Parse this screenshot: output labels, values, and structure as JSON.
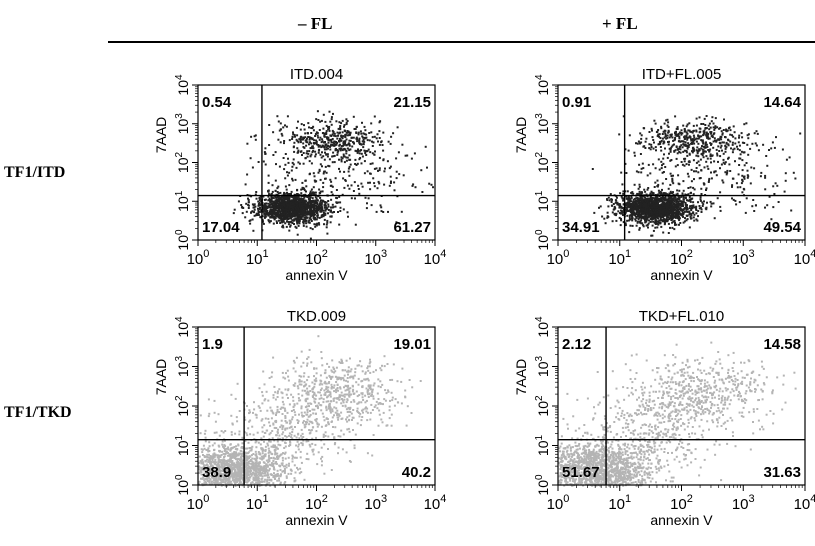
{
  "column_headers": [
    "– FL",
    "+ FL"
  ],
  "row_headers": [
    "TF1/ITD",
    "TF1/TKD"
  ],
  "chart_data": [
    {
      "type": "scatter",
      "title": "ITD.004",
      "xlabel": "annexin V",
      "ylabel": "7AAD",
      "xscale": "log",
      "yscale": "log",
      "xlim": [
        1,
        10000
      ],
      "ylim": [
        1,
        10000
      ],
      "x_ticks": [
        "10^0",
        "10^1",
        "10^2",
        "10^3",
        "10^4"
      ],
      "y_ticks": [
        "10^0",
        "10^1",
        "10^2",
        "10^3",
        "10^4"
      ],
      "gates": {
        "x": 12,
        "y": 14
      },
      "quadrants": {
        "upper_left": "0.54",
        "upper_right": "21.15",
        "lower_left": "17.04",
        "lower_right": "61.27"
      },
      "color": "#222222"
    },
    {
      "type": "scatter",
      "title": "ITD+FL.005",
      "xlabel": "annexin V",
      "ylabel": "7AAD",
      "xscale": "log",
      "yscale": "log",
      "xlim": [
        1,
        10000
      ],
      "ylim": [
        1,
        10000
      ],
      "x_ticks": [
        "10^0",
        "10^1",
        "10^2",
        "10^3",
        "10^4"
      ],
      "y_ticks": [
        "10^0",
        "10^1",
        "10^2",
        "10^3",
        "10^4"
      ],
      "gates": {
        "x": 12,
        "y": 14
      },
      "quadrants": {
        "upper_left": "0.91",
        "upper_right": "14.64",
        "lower_left": "34.91",
        "lower_right": "49.54"
      },
      "color": "#222222"
    },
    {
      "type": "scatter",
      "title": "TKD.009",
      "xlabel": "annexin V",
      "ylabel": "7AAD",
      "xscale": "log",
      "yscale": "log",
      "xlim": [
        1,
        10000
      ],
      "ylim": [
        1,
        10000
      ],
      "x_ticks": [
        "10^0",
        "10^1",
        "10^2",
        "10^3",
        "10^4"
      ],
      "y_ticks": [
        "10^0",
        "10^1",
        "10^2",
        "10^3",
        "10^4"
      ],
      "gates": {
        "x": 6,
        "y": 14
      },
      "quadrants": {
        "upper_left": "1.9",
        "upper_right": "19.01",
        "lower_left": "38.9",
        "lower_right": "40.2"
      },
      "color": "#b4b4b4"
    },
    {
      "type": "scatter",
      "title": "TKD+FL.010",
      "xlabel": "annexin V",
      "ylabel": "7AAD",
      "xscale": "log",
      "yscale": "log",
      "xlim": [
        1,
        10000
      ],
      "ylim": [
        1,
        10000
      ],
      "x_ticks": [
        "10^0",
        "10^1",
        "10^2",
        "10^3",
        "10^4"
      ],
      "y_ticks": [
        "10^0",
        "10^1",
        "10^2",
        "10^3",
        "10^4"
      ],
      "gates": {
        "x": 6,
        "y": 14
      },
      "quadrants": {
        "upper_left": "2.12",
        "upper_right": "14.58",
        "lower_left": "51.67",
        "lower_right": "31.63"
      },
      "color": "#b4b4b4"
    }
  ]
}
